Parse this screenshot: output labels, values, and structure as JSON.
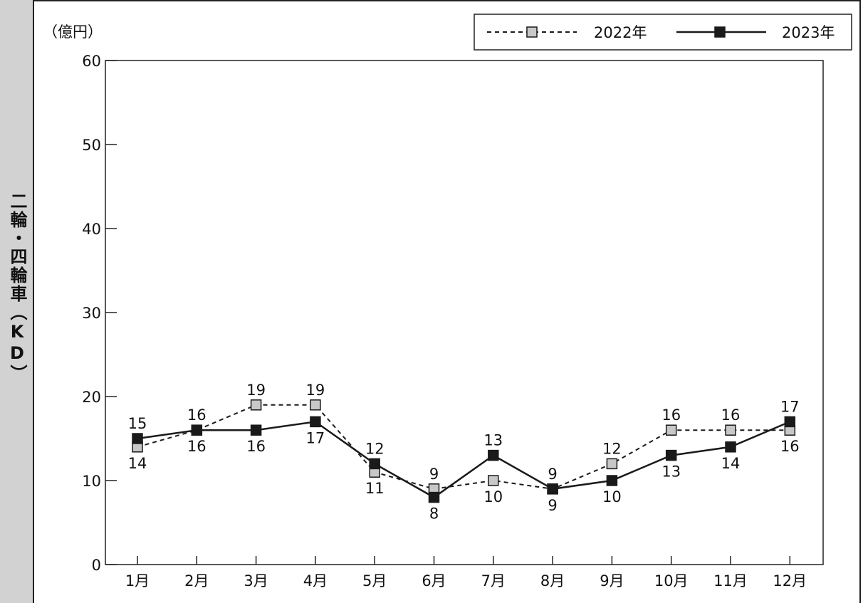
{
  "side_label": "二輪・四輪車（KD）",
  "unit_label": "（億円）",
  "colors": {
    "series_2022_fill": "#c8c8c8",
    "series_2023_fill": "#1a1a1a",
    "side_panel": "#d2d2d2"
  },
  "chart_data": {
    "type": "line",
    "categories": [
      "1月",
      "2月",
      "3月",
      "4月",
      "5月",
      "6月",
      "7月",
      "8月",
      "9月",
      "10月",
      "11月",
      "12月"
    ],
    "ylim": [
      0,
      60
    ],
    "yticks": [
      0,
      10,
      20,
      30,
      40,
      50,
      60
    ],
    "grid": false,
    "legend_position": "top-right",
    "series": [
      {
        "name": "2022年",
        "style": "dashed",
        "marker": "square-gray",
        "values": [
          14,
          16,
          19,
          19,
          11,
          9,
          10,
          9,
          12,
          16,
          16,
          16
        ]
      },
      {
        "name": "2023年",
        "style": "solid",
        "marker": "square-black",
        "values": [
          15,
          16,
          16,
          17,
          12,
          8,
          13,
          9,
          10,
          13,
          14,
          17
        ]
      }
    ]
  }
}
